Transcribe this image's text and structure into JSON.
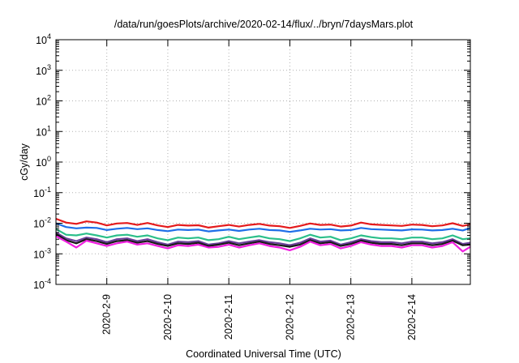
{
  "chart_data": {
    "type": "line",
    "title": "/data/run/goesPlots/archive/2020-02-14/flux/../bryn/7daysMars.plot",
    "xlabel": "Coordinated Universal Time (UTC)",
    "ylabel": "cGy/day",
    "yscale": "log",
    "ylim": [
      0.0001,
      10000
    ],
    "y_ticks": [
      {
        "base": "10",
        "exp": "-4"
      },
      {
        "base": "10",
        "exp": "-3"
      },
      {
        "base": "10",
        "exp": "-2"
      },
      {
        "base": "10",
        "exp": "-1"
      },
      {
        "base": "10",
        "exp": "0"
      },
      {
        "base": "10",
        "exp": "1"
      },
      {
        "base": "10",
        "exp": "2"
      },
      {
        "base": "10",
        "exp": "3"
      },
      {
        "base": "10",
        "exp": "4"
      }
    ],
    "xlim": [
      "2020-02-08T04:00",
      "2020-02-14T23:00"
    ],
    "x_ticks": [
      "2020-2-9",
      "2020-2-10",
      "2020-2-11",
      "2020-2-12",
      "2020-2-13",
      "2020-2-14"
    ],
    "grid": true,
    "x": [
      "2020-02-08T04:00",
      "2020-02-08T08:00",
      "2020-02-08T12:00",
      "2020-02-08T16:00",
      "2020-02-08T20:00",
      "2020-02-09T00:00",
      "2020-02-09T04:00",
      "2020-02-09T08:00",
      "2020-02-09T12:00",
      "2020-02-09T16:00",
      "2020-02-09T20:00",
      "2020-02-10T00:00",
      "2020-02-10T04:00",
      "2020-02-10T08:00",
      "2020-02-10T12:00",
      "2020-02-10T16:00",
      "2020-02-10T20:00",
      "2020-02-11T00:00",
      "2020-02-11T04:00",
      "2020-02-11T08:00",
      "2020-02-11T12:00",
      "2020-02-11T16:00",
      "2020-02-11T20:00",
      "2020-02-12T00:00",
      "2020-02-12T04:00",
      "2020-02-12T08:00",
      "2020-02-12T12:00",
      "2020-02-12T16:00",
      "2020-02-12T20:00",
      "2020-02-13T00:00",
      "2020-02-13T04:00",
      "2020-02-13T08:00",
      "2020-02-13T12:00",
      "2020-02-13T16:00",
      "2020-02-13T20:00",
      "2020-02-14T00:00",
      "2020-02-14T04:00",
      "2020-02-14T08:00",
      "2020-02-14T12:00",
      "2020-02-14T16:00",
      "2020-02-14T20:00",
      "2020-02-14T23:00"
    ],
    "series": [
      {
        "color": "#e41a1c",
        "values": [
          0.014,
          0.0105,
          0.0095,
          0.0115,
          0.0105,
          0.0085,
          0.0098,
          0.0102,
          0.0088,
          0.0102,
          0.0085,
          0.0075,
          0.0088,
          0.0084,
          0.0086,
          0.0072,
          0.008,
          0.0088,
          0.0078,
          0.0088,
          0.0095,
          0.0084,
          0.008,
          0.007,
          0.0082,
          0.0098,
          0.0088,
          0.009,
          0.0078,
          0.0084,
          0.0105,
          0.0092,
          0.0088,
          0.0085,
          0.0082,
          0.009,
          0.0088,
          0.008,
          0.0085,
          0.01,
          0.0082,
          0.0092
        ]
      },
      {
        "color": "#1f6fe8",
        "values": [
          0.01,
          0.0075,
          0.0068,
          0.0072,
          0.007,
          0.006,
          0.0066,
          0.007,
          0.0064,
          0.0068,
          0.006,
          0.0055,
          0.0062,
          0.006,
          0.0062,
          0.0054,
          0.0058,
          0.0062,
          0.0056,
          0.0062,
          0.0066,
          0.006,
          0.0058,
          0.0052,
          0.0058,
          0.0066,
          0.0062,
          0.0064,
          0.0058,
          0.006,
          0.007,
          0.0064,
          0.0062,
          0.006,
          0.0058,
          0.0063,
          0.0062,
          0.0058,
          0.006,
          0.0066,
          0.0058,
          0.007
        ]
      },
      {
        "color": "#2bbf8a",
        "values": [
          0.0065,
          0.0042,
          0.004,
          0.0046,
          0.004,
          0.0034,
          0.004,
          0.0042,
          0.0036,
          0.004,
          0.0032,
          0.0028,
          0.0034,
          0.0032,
          0.0034,
          0.0028,
          0.003,
          0.0036,
          0.003,
          0.0034,
          0.0038,
          0.0032,
          0.003,
          0.0026,
          0.0032,
          0.0042,
          0.0034,
          0.0036,
          0.0028,
          0.0032,
          0.004,
          0.0035,
          0.0032,
          0.0032,
          0.003,
          0.0034,
          0.0034,
          0.003,
          0.0032,
          0.004,
          0.003,
          0.0032
        ]
      },
      {
        "color": "#6a3d9a",
        "values": [
          0.005,
          0.0032,
          0.0026,
          0.0034,
          0.003,
          0.0024,
          0.003,
          0.0032,
          0.0026,
          0.003,
          0.0024,
          0.002,
          0.0025,
          0.0024,
          0.0026,
          0.002,
          0.0022,
          0.0026,
          0.0022,
          0.0025,
          0.0028,
          0.0024,
          0.0022,
          0.0019,
          0.0023,
          0.0032,
          0.0025,
          0.0027,
          0.002,
          0.0024,
          0.003,
          0.0026,
          0.0024,
          0.0024,
          0.0022,
          0.0025,
          0.0025,
          0.0022,
          0.0024,
          0.003,
          0.0021,
          0.0023
        ]
      },
      {
        "color": "#1a1a1a",
        "values": [
          0.0045,
          0.0028,
          0.0022,
          0.003,
          0.0026,
          0.0021,
          0.0026,
          0.0028,
          0.0023,
          0.0026,
          0.0021,
          0.0018,
          0.0022,
          0.0021,
          0.0023,
          0.0018,
          0.002,
          0.0023,
          0.0019,
          0.0022,
          0.0025,
          0.0021,
          0.0019,
          0.0017,
          0.002,
          0.0028,
          0.0022,
          0.0024,
          0.0018,
          0.0021,
          0.0027,
          0.0023,
          0.0021,
          0.0021,
          0.0019,
          0.0022,
          0.0022,
          0.0019,
          0.0021,
          0.0027,
          0.0019,
          0.002
        ]
      },
      {
        "color": "#f01ee0",
        "values": [
          0.0038,
          0.0025,
          0.0016,
          0.0027,
          0.0022,
          0.0018,
          0.0022,
          0.0025,
          0.002,
          0.0022,
          0.0018,
          0.0015,
          0.0019,
          0.0018,
          0.002,
          0.0016,
          0.0017,
          0.002,
          0.0016,
          0.0019,
          0.0022,
          0.0018,
          0.0016,
          0.0013,
          0.0017,
          0.0025,
          0.0019,
          0.0021,
          0.0015,
          0.0018,
          0.0024,
          0.002,
          0.0018,
          0.0018,
          0.0016,
          0.0019,
          0.0019,
          0.0016,
          0.0018,
          0.0024,
          0.0012,
          0.0017
        ]
      }
    ]
  }
}
